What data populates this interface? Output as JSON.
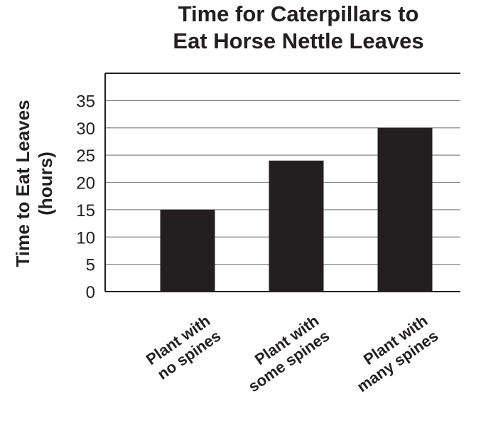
{
  "chart_data": {
    "type": "bar",
    "title_lines": [
      "Time for Caterpillars to",
      "Eat Horse Nettle Leaves"
    ],
    "ylabel_lines": [
      "Time to Eat Leaves",
      "(hours)"
    ],
    "xlabel": "",
    "categories": [
      [
        "Plant with",
        "no spines"
      ],
      [
        "Plant with",
        "some spines"
      ],
      [
        "Plant with",
        "many spines"
      ]
    ],
    "values": [
      15,
      24,
      30
    ],
    "ylim": [
      0,
      40
    ],
    "yticks": [
      "0",
      "5",
      "10",
      "15",
      "20",
      "25",
      "30",
      "35"
    ],
    "ytick_values": [
      0,
      5,
      10,
      15,
      20,
      25,
      30,
      35
    ],
    "grid": true,
    "colors": {
      "bar": "#231f20",
      "axis": "#231f20",
      "grid": "#8a8a8a",
      "text": "#231f20"
    }
  }
}
